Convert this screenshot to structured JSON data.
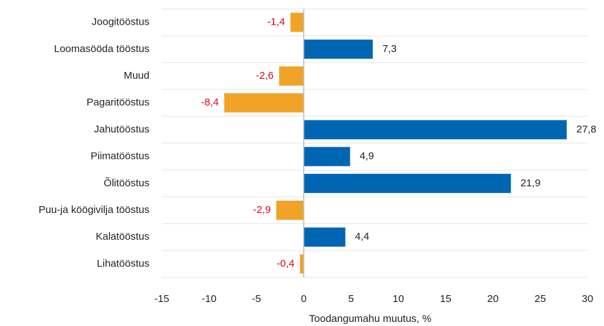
{
  "chart_data": {
    "type": "hbar",
    "categories": [
      "Joogitööstus",
      "Loomasööda tööstus",
      "Muud",
      "Pagaritööstus",
      "Jahutööstus",
      "Piimatööstus",
      "Õlitööstus",
      "Puu-ja köögivilja tööstus",
      "Kalatööstus",
      "Lihatööstus"
    ],
    "values": [
      -1.4,
      7.3,
      -2.6,
      -8.4,
      27.8,
      4.9,
      21.9,
      -2.9,
      4.4,
      -0.4
    ],
    "value_labels": [
      "-1,4",
      "7,3",
      "-2,6",
      "-8,4",
      "27,8",
      "4,9",
      "21,9",
      "-2,9",
      "4,4",
      "-0,4"
    ],
    "color_positive": "#0066b3",
    "color_negative": "#f0a326",
    "label_color_positive": "#222222",
    "label_color_negative": "#e3001b",
    "xlabel": "Toodangumahu muutus, %",
    "xlim": [
      -15,
      30
    ],
    "xticks": [
      -15,
      -10,
      -5,
      0,
      5,
      10,
      15,
      20,
      25,
      30
    ]
  }
}
